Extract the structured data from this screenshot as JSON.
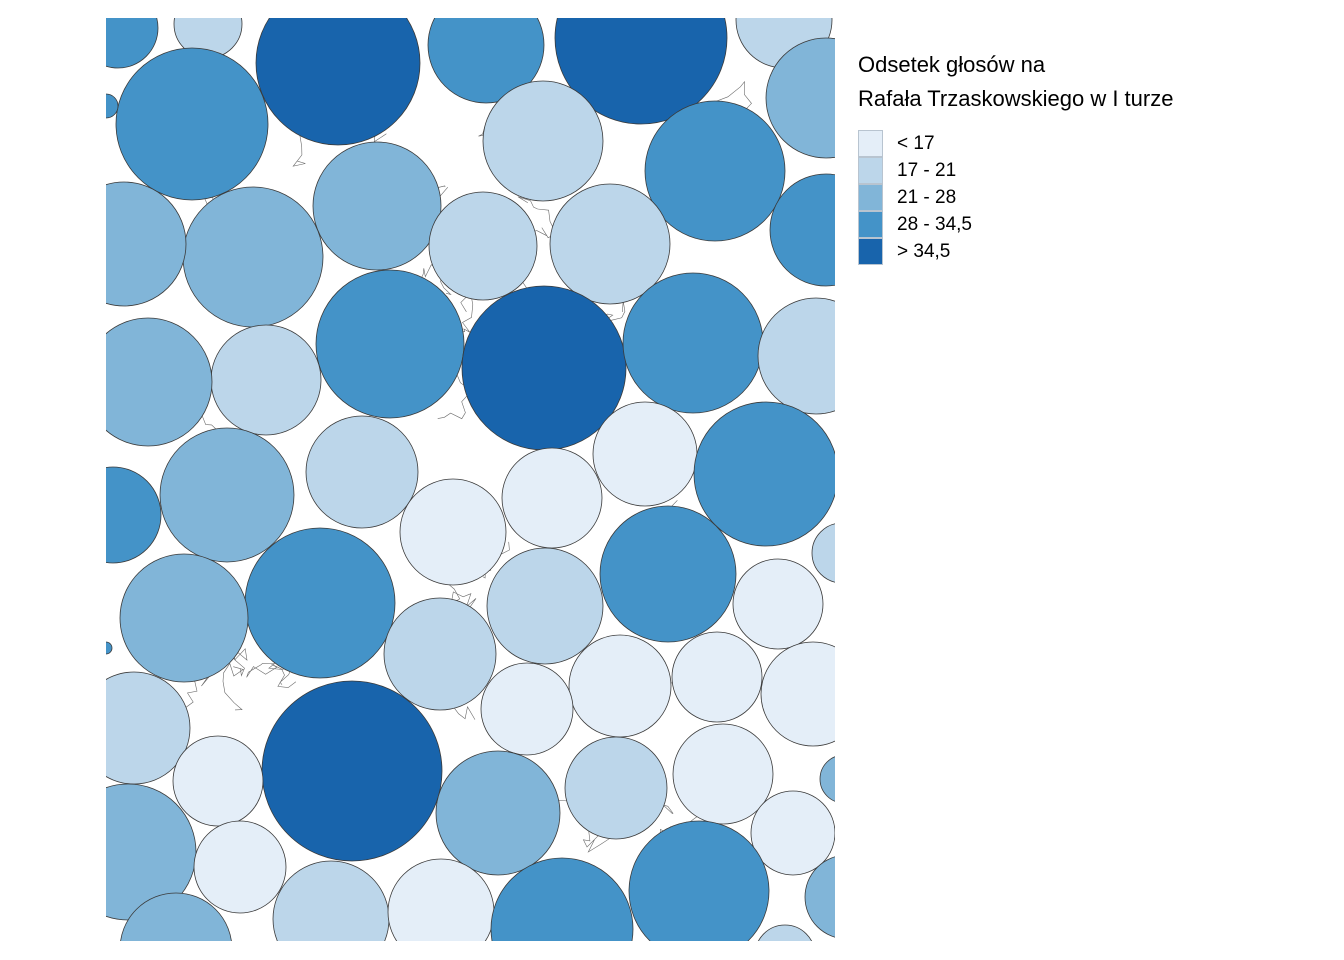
{
  "legend": {
    "title_line1": "Odsetek głosów na",
    "title_line2": "Rafała Trzaskowskiego w I turze",
    "classes": [
      {
        "label": "< 17",
        "color": "#e4eef8"
      },
      {
        "label": "17 - 21",
        "color": "#bcd6ea"
      },
      {
        "label": "21 - 28",
        "color": "#81b5d8"
      },
      {
        "label": "28 - 34,5",
        "color": "#4493c8"
      },
      {
        "label": "> 34,5",
        "color": "#1864ac"
      }
    ]
  },
  "map": {
    "circle_stroke": "#3a3a3a",
    "boundary_stroke": "#6a6a6a",
    "background": "#ffffff"
  }
}
